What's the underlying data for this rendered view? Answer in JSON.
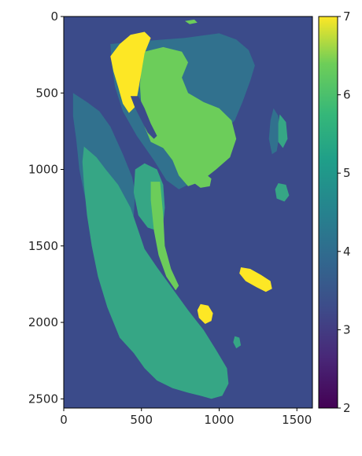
{
  "chart_data": {
    "type": "heatmap",
    "title": "",
    "xlabel": "",
    "ylabel": "",
    "xlim": [
      0,
      1600
    ],
    "ylim": [
      2560,
      0
    ],
    "x_ticks": [
      0,
      500,
      1000,
      1500
    ],
    "x_tick_labels": [
      "0",
      "500",
      "1000",
      "1500"
    ],
    "y_ticks": [
      0,
      500,
      1000,
      1500,
      2000,
      2500
    ],
    "y_tick_labels": [
      "0",
      "500",
      "1000",
      "1500",
      "2000",
      "2500"
    ],
    "colormap": "viridis",
    "colorbar": {
      "min": 2,
      "max": 7,
      "ticks": [
        2,
        3,
        4,
        5,
        6,
        7
      ],
      "tick_labels": [
        "2",
        "3",
        "4",
        "5",
        "6",
        "7"
      ]
    },
    "class_colors": {
      "3": "#3b4b8a",
      "4": "#31718e",
      "5": "#36a685",
      "6": "#6ccd5a",
      "7": "#fde725"
    },
    "background_class": 3,
    "regions": [
      {
        "class": 4,
        "points": [
          [
            300,
            180
          ],
          [
            520,
            160
          ],
          [
            780,
            140
          ],
          [
            1000,
            110
          ],
          [
            1110,
            150
          ],
          [
            1190,
            220
          ],
          [
            1230,
            320
          ],
          [
            1200,
            420
          ],
          [
            1150,
            560
          ],
          [
            1100,
            680
          ],
          [
            1000,
            780
          ],
          [
            950,
            900
          ],
          [
            870,
            1040
          ],
          [
            800,
            1100
          ],
          [
            740,
            1130
          ],
          [
            660,
            1070
          ],
          [
            580,
            940
          ],
          [
            470,
            780
          ],
          [
            380,
            620
          ],
          [
            330,
            460
          ],
          [
            310,
            320
          ]
        ]
      },
      {
        "class": 4,
        "points": [
          [
            60,
            500
          ],
          [
            150,
            560
          ],
          [
            230,
            620
          ],
          [
            300,
            720
          ],
          [
            380,
            900
          ],
          [
            440,
            1050
          ],
          [
            460,
            1150
          ],
          [
            450,
            1300
          ],
          [
            420,
            1400
          ],
          [
            380,
            1500
          ],
          [
            320,
            1600
          ],
          [
            240,
            1550
          ],
          [
            180,
            1400
          ],
          [
            140,
            1200
          ],
          [
            100,
            1000
          ],
          [
            80,
            800
          ],
          [
            60,
            650
          ]
        ]
      },
      {
        "class": 5,
        "points": [
          [
            130,
            850
          ],
          [
            210,
            920
          ],
          [
            270,
            1000
          ],
          [
            350,
            1100
          ],
          [
            430,
            1250
          ],
          [
            480,
            1400
          ],
          [
            520,
            1520
          ],
          [
            600,
            1640
          ],
          [
            700,
            1780
          ],
          [
            800,
            1920
          ],
          [
            900,
            2050
          ],
          [
            980,
            2180
          ],
          [
            1050,
            2300
          ],
          [
            1060,
            2400
          ],
          [
            1020,
            2480
          ],
          [
            950,
            2500
          ],
          [
            880,
            2480
          ],
          [
            800,
            2460
          ],
          [
            700,
            2430
          ],
          [
            600,
            2380
          ],
          [
            520,
            2300
          ],
          [
            450,
            2200
          ],
          [
            360,
            2100
          ],
          [
            280,
            1900
          ],
          [
            220,
            1700
          ],
          [
            180,
            1500
          ],
          [
            150,
            1300
          ],
          [
            130,
            1100
          ],
          [
            120,
            950
          ]
        ]
      },
      {
        "class": 5,
        "points": [
          [
            460,
            1000
          ],
          [
            520,
            960
          ],
          [
            600,
            1000
          ],
          [
            640,
            1100
          ],
          [
            650,
            1250
          ],
          [
            640,
            1350
          ],
          [
            600,
            1400
          ],
          [
            540,
            1380
          ],
          [
            480,
            1300
          ],
          [
            450,
            1150
          ]
        ]
      },
      {
        "class": 6,
        "points": [
          [
            520,
            230
          ],
          [
            640,
            200
          ],
          [
            760,
            230
          ],
          [
            800,
            300
          ],
          [
            760,
            400
          ],
          [
            800,
            500
          ],
          [
            900,
            560
          ],
          [
            1000,
            600
          ],
          [
            1080,
            680
          ],
          [
            1110,
            800
          ],
          [
            1070,
            920
          ],
          [
            980,
            1000
          ],
          [
            880,
            1080
          ],
          [
            800,
            1110
          ],
          [
            740,
            1040
          ],
          [
            700,
            940
          ],
          [
            640,
            860
          ],
          [
            560,
            820
          ],
          [
            520,
            720
          ],
          [
            500,
            600
          ],
          [
            490,
            450
          ],
          [
            500,
            320
          ]
        ]
      },
      {
        "class": 6,
        "points": [
          [
            560,
            1080
          ],
          [
            620,
            1080
          ],
          [
            640,
            1300
          ],
          [
            650,
            1500
          ],
          [
            690,
            1650
          ],
          [
            740,
            1760
          ],
          [
            720,
            1790
          ],
          [
            660,
            1700
          ],
          [
            610,
            1560
          ],
          [
            580,
            1400
          ],
          [
            560,
            1200
          ]
        ]
      },
      {
        "class": 6,
        "points": [
          [
            840,
            1040
          ],
          [
            900,
            1020
          ],
          [
            950,
            1060
          ],
          [
            940,
            1110
          ],
          [
            880,
            1120
          ],
          [
            840,
            1090
          ]
        ]
      },
      {
        "class": 7,
        "points": [
          [
            360,
            180
          ],
          [
            430,
            120
          ],
          [
            520,
            100
          ],
          [
            560,
            140
          ],
          [
            520,
            240
          ],
          [
            500,
            360
          ],
          [
            480,
            480
          ],
          [
            460,
            590
          ],
          [
            420,
            630
          ],
          [
            380,
            570
          ],
          [
            350,
            460
          ],
          [
            320,
            360
          ],
          [
            300,
            260
          ]
        ]
      },
      {
        "class": 7,
        "points": [
          [
            1140,
            1640
          ],
          [
            1200,
            1650
          ],
          [
            1270,
            1690
          ],
          [
            1330,
            1730
          ],
          [
            1340,
            1780
          ],
          [
            1300,
            1800
          ],
          [
            1240,
            1770
          ],
          [
            1170,
            1730
          ],
          [
            1130,
            1680
          ]
        ]
      },
      {
        "class": 7,
        "points": [
          [
            880,
            1880
          ],
          [
            930,
            1890
          ],
          [
            960,
            1940
          ],
          [
            950,
            1990
          ],
          [
            910,
            2010
          ],
          [
            870,
            1970
          ],
          [
            860,
            1920
          ]
        ]
      },
      {
        "class": 4,
        "points": [
          [
            1350,
            600
          ],
          [
            1380,
            650
          ],
          [
            1390,
            760
          ],
          [
            1370,
            880
          ],
          [
            1340,
            900
          ],
          [
            1320,
            800
          ],
          [
            1330,
            680
          ]
        ]
      },
      {
        "class": 5,
        "points": [
          [
            1390,
            640
          ],
          [
            1430,
            690
          ],
          [
            1440,
            800
          ],
          [
            1410,
            860
          ],
          [
            1380,
            820
          ],
          [
            1380,
            700
          ]
        ]
      },
      {
        "class": 5,
        "points": [
          [
            1380,
            1090
          ],
          [
            1430,
            1100
          ],
          [
            1450,
            1170
          ],
          [
            1420,
            1210
          ],
          [
            1370,
            1190
          ],
          [
            1360,
            1130
          ]
        ]
      },
      {
        "class": 5,
        "points": [
          [
            1100,
            2090
          ],
          [
            1130,
            2100
          ],
          [
            1140,
            2150
          ],
          [
            1110,
            2170
          ],
          [
            1090,
            2130
          ]
        ]
      },
      {
        "class": 6,
        "points": [
          [
            780,
            30
          ],
          [
            840,
            20
          ],
          [
            860,
            40
          ],
          [
            810,
            50
          ]
        ]
      },
      {
        "class": 3,
        "points": [
          [
            430,
            520
          ],
          [
            480,
            520
          ],
          [
            520,
            600
          ],
          [
            560,
            700
          ],
          [
            600,
            780
          ],
          [
            580,
            800
          ],
          [
            540,
            760
          ],
          [
            500,
            680
          ],
          [
            460,
            600
          ]
        ]
      }
    ]
  }
}
